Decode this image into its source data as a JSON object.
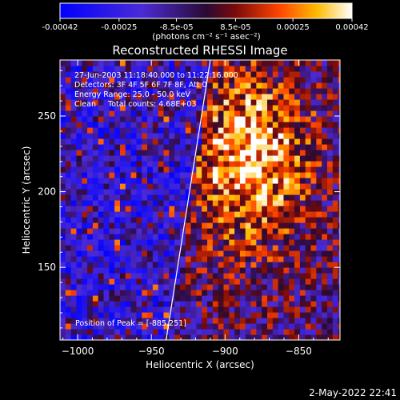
{
  "colorbar": {
    "ticks": [
      {
        "label": "-0.00042",
        "value": -0.00042
      },
      {
        "label": "-0.00025",
        "value": -0.00025
      },
      {
        "label": "-8.5e-05",
        "value": -8.5e-05
      },
      {
        "label": "8.5e-05",
        "value": 8.5e-05
      },
      {
        "label": "0.00025",
        "value": 0.00025
      },
      {
        "label": "0.00042",
        "value": 0.00042
      }
    ],
    "units_label": "(photons cm⁻² s⁻¹ asec⁻²)",
    "range": [
      -0.00042,
      0.00042
    ]
  },
  "chart_data": {
    "type": "heatmap",
    "title": "Reconstructed RHESSI Image",
    "xlabel": "Heliocentric X (arcsec)",
    "ylabel": "Heliocentric Y (arcsec)",
    "xlim": [
      -1012,
      -822
    ],
    "ylim": [
      102,
      287
    ],
    "xticks": [
      {
        "label": "−1000",
        "value": -1000
      },
      {
        "label": "−950",
        "value": -950
      },
      {
        "label": "−900",
        "value": -900
      },
      {
        "label": "−850",
        "value": -850
      }
    ],
    "yticks": [
      {
        "label": "150",
        "value": 150
      },
      {
        "label": "200",
        "value": 200
      },
      {
        "label": "250",
        "value": 250
      }
    ],
    "annotations": [
      "27-Jun-2003 11:18:40.000 to 11:22:16.000",
      "Detectors: 3F 4F 5F 6F 7F 8F, Att 0",
      "Energy Range: 25.0 - 50.0 keV",
      "Clean     Total counts: 4.68E+03"
    ],
    "peak_label": "Position of Peak = [-885,251]",
    "peak": [
      -885,
      251
    ],
    "limb_line": [
      [
        -940,
        102
      ],
      [
        -910,
        287
      ]
    ]
  },
  "footer": {
    "timestamp": "2-May-2022 22:41"
  },
  "colors": {
    "background": "#000000",
    "foreground": "#ffffff"
  }
}
